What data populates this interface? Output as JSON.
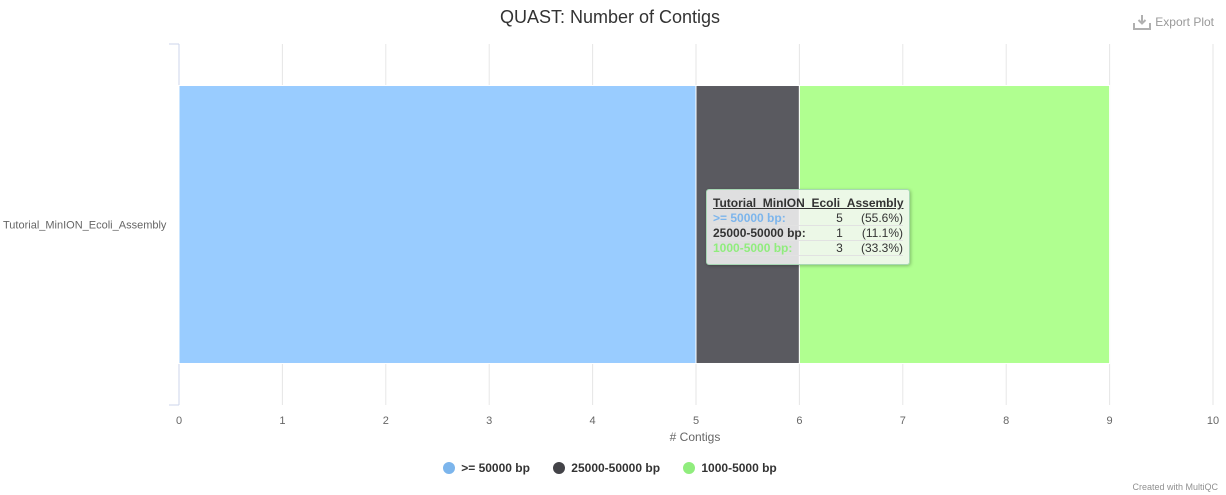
{
  "title": "QUAST: Number of Contigs",
  "export_label": "Export Plot",
  "credit": "Created with MultiQC",
  "chart_data": {
    "type": "bar",
    "orientation": "horizontal",
    "stacked": true,
    "categories": [
      "Tutorial_MinION_Ecoli_Assembly"
    ],
    "series": [
      {
        "name": ">= 50000 bp",
        "values": [
          5
        ],
        "color": "#99ccff"
      },
      {
        "name": "25000-50000 bp",
        "values": [
          1
        ],
        "color": "#5a5a60"
      },
      {
        "name": "1000-5000 bp",
        "values": [
          3
        ],
        "color": "#b0ff90"
      }
    ],
    "xlabel": "# Contigs",
    "xlim": [
      0,
      10
    ],
    "xticks": [
      "0",
      "1",
      "2",
      "3",
      "4",
      "5",
      "6",
      "7",
      "8",
      "9",
      "10"
    ],
    "grid": true,
    "legend": "bottom-center",
    "legend_colors": [
      "#7cb5ec",
      "#434348",
      "#90ed7d"
    ]
  },
  "tooltip": {
    "title": "Tutorial_MinION_Ecoli_Assembly",
    "rows": [
      {
        "label": ">= 50000 bp:",
        "value": "5",
        "pct": "(55.6%)",
        "color": "#7cb5ec"
      },
      {
        "label": "25000-50000 bp:",
        "value": "1",
        "pct": "(11.1%)",
        "color": "#333333"
      },
      {
        "label": "1000-5000 bp:",
        "value": "3",
        "pct": "(33.3%)",
        "color": "#90ed7d"
      }
    ]
  }
}
